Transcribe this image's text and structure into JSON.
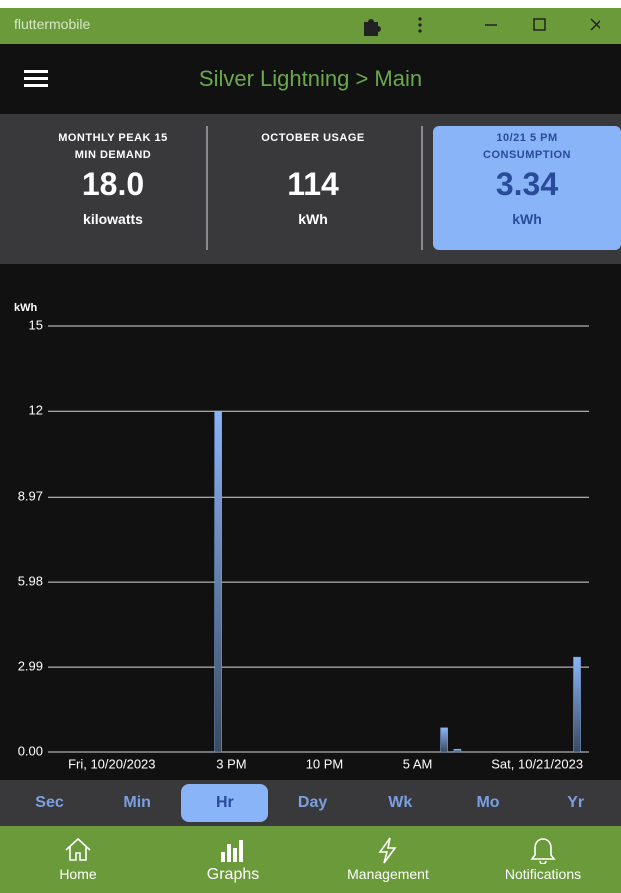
{
  "window": {
    "title": "fluttermobile"
  },
  "app_bar": {
    "title": "Silver Lightning > Main"
  },
  "cards": [
    {
      "label": "MONTHLY PEAK 15 MIN DEMAND",
      "value": "18.0",
      "unit": "kilowatts"
    },
    {
      "label": "OCTOBER USAGE",
      "value": "114",
      "unit": "kWh"
    },
    {
      "label": "10/21 5 PM CONSUMPTION",
      "value": "3.34",
      "unit": "kWh"
    }
  ],
  "chart_data": {
    "type": "bar",
    "y_label": "kWh",
    "x": [
      14,
      31,
      32,
      41
    ],
    "values": [
      12,
      0.85,
      0.1,
      3.34
    ],
    "color": "#8ab4f8",
    "xlim": [
      1.2,
      41.9
    ],
    "xticks": [
      {
        "value": 6,
        "label": "Fri, 10/20/2023"
      },
      {
        "value": 15,
        "label": "3 PM"
      },
      {
        "value": 22,
        "label": "10 PM"
      },
      {
        "value": 29,
        "label": "5 AM"
      },
      {
        "value": 38,
        "label": "Sat, 10/21/2023"
      }
    ],
    "ylim": [
      0,
      15
    ],
    "yticks": [
      {
        "value": 0,
        "label": "0.00"
      },
      2.99,
      5.98,
      8.97,
      12,
      15
    ],
    "grid": true
  },
  "tabs": {
    "items": [
      "Sec",
      "Min",
      "Hr",
      "Day",
      "Wk",
      "Mo",
      "Yr"
    ],
    "selected": "Hr"
  },
  "nav": {
    "items": [
      "Home",
      "Graphs",
      "Management",
      "Notifications"
    ],
    "selected": "Graphs"
  }
}
